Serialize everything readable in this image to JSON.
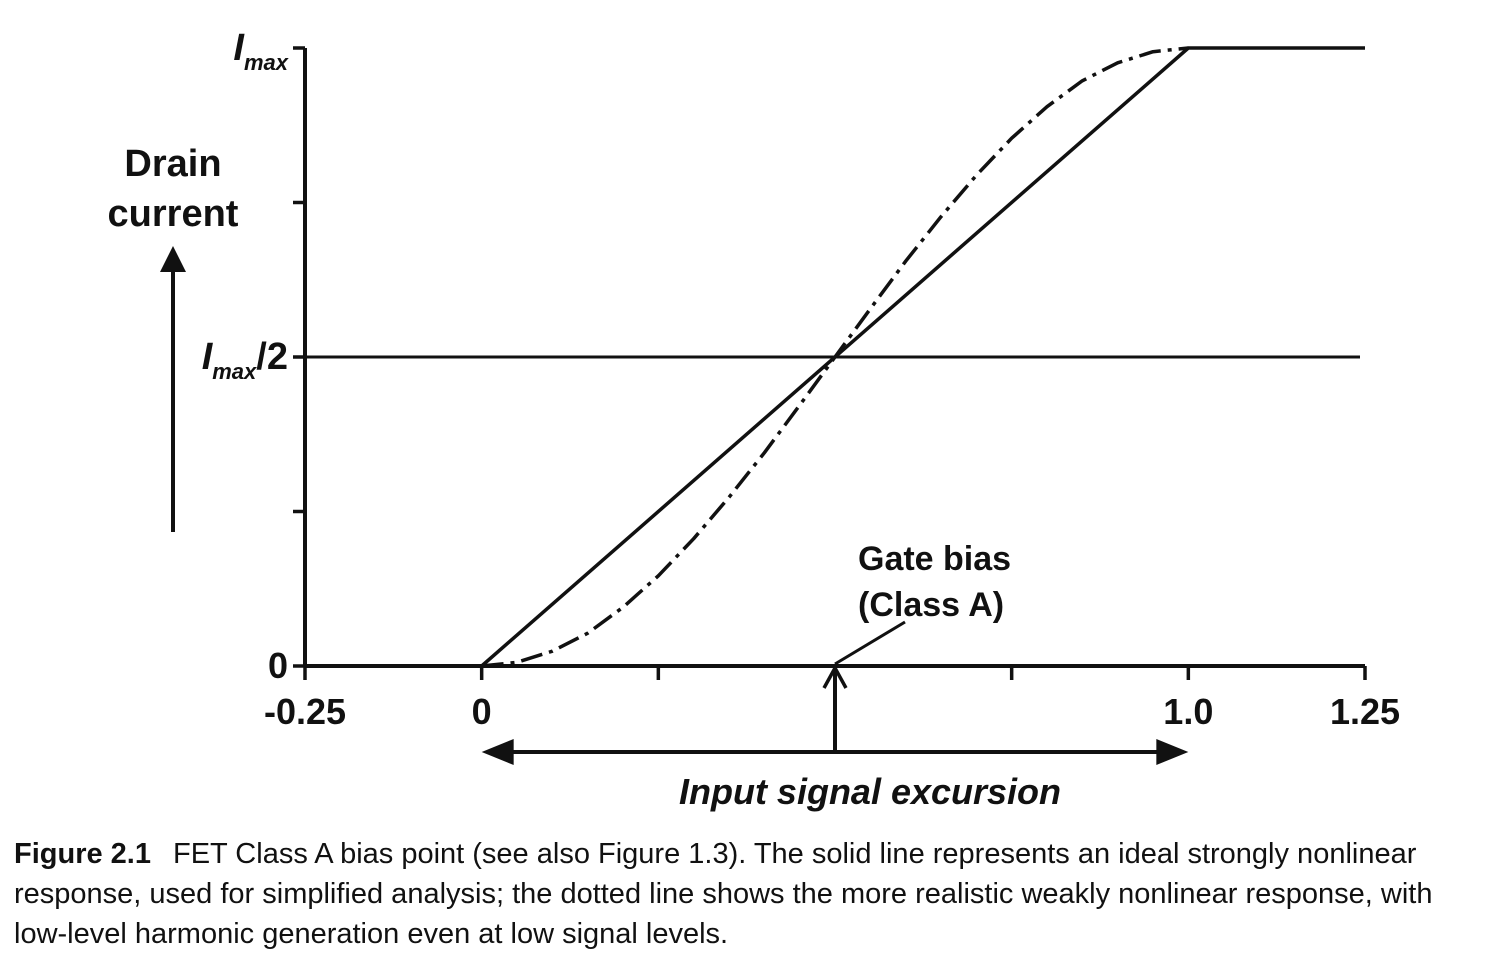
{
  "chart_data": {
    "type": "line",
    "xlabel": "Input signal excursion",
    "ylabel": [
      "Drain",
      "current"
    ],
    "x_ticks": [
      -0.25,
      0,
      0.25,
      0.5,
      0.75,
      1.0,
      1.25
    ],
    "x_tick_labels": [
      {
        "x": -0.25,
        "text": "-0.25"
      },
      {
        "x": 0,
        "text": "0"
      },
      {
        "x": 1.0,
        "text": "1.0"
      },
      {
        "x": 1.25,
        "text": "1.25"
      }
    ],
    "y_ticks": [
      0,
      0.25,
      0.5,
      0.75,
      1.0
    ],
    "y_tick_labels": [
      {
        "y": 0,
        "main": "0",
        "sub": "",
        "rest": ""
      },
      {
        "y": 0.5,
        "main": "I",
        "sub": "max",
        "rest": "/2"
      },
      {
        "y": 1.0,
        "main": "I",
        "sub": "max",
        "rest": ""
      }
    ],
    "xlim": [
      -0.25,
      1.25
    ],
    "ylim": [
      0,
      1.0
    ],
    "reference_line": {
      "y": 0.5
    },
    "series": [
      {
        "style": "solid",
        "x": [
          -0.25,
          0,
          1.0,
          1.25
        ],
        "y": [
          0,
          0,
          1.0,
          1.0
        ]
      },
      {
        "style": "dash-dot",
        "x": [
          0,
          0.05,
          0.1,
          0.15,
          0.2,
          0.25,
          0.3,
          0.35,
          0.4,
          0.45,
          0.5,
          0.55,
          0.6,
          0.65,
          0.7,
          0.75,
          0.8,
          0.85,
          0.9,
          0.95,
          1.0
        ],
        "y": [
          0,
          0.006,
          0.024,
          0.053,
          0.095,
          0.146,
          0.206,
          0.273,
          0.345,
          0.422,
          0.5,
          0.578,
          0.655,
          0.727,
          0.794,
          0.854,
          0.905,
          0.947,
          0.976,
          0.994,
          1.0
        ]
      }
    ],
    "annotation": {
      "lines": [
        "Gate bias",
        "(Class A)"
      ],
      "x": 0.5,
      "y": 0
    }
  },
  "caption": {
    "label": "Figure 2.1",
    "text": "FET Class A bias point (see also Figure 1.3). The solid line represents an ideal strongly nonlinear response, used for simplified analysis; the dotted line shows the more realistic weakly nonlinear response, with low-level harmonic generation even at low signal levels."
  }
}
